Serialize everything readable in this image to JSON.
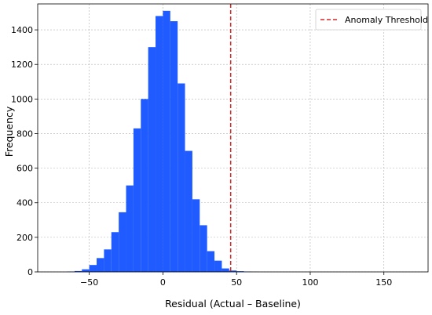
{
  "chart_data": {
    "type": "bar",
    "xlabel": "Residual (Actual – Baseline)",
    "ylabel": "Frequency",
    "xlim": [
      -85,
      180
    ],
    "ylim": [
      0,
      1550
    ],
    "xticks": [
      -50,
      0,
      50,
      100,
      150
    ],
    "yticks": [
      0,
      200,
      400,
      600,
      800,
      1000,
      1200,
      1400
    ],
    "bin_width": 5,
    "bins": [
      {
        "x0": -65,
        "count": 2
      },
      {
        "x0": -60,
        "count": 5
      },
      {
        "x0": -55,
        "count": 15
      },
      {
        "x0": -50,
        "count": 40
      },
      {
        "x0": -45,
        "count": 80
      },
      {
        "x0": -40,
        "count": 130
      },
      {
        "x0": -35,
        "count": 230
      },
      {
        "x0": -30,
        "count": 345
      },
      {
        "x0": -25,
        "count": 500
      },
      {
        "x0": -20,
        "count": 830
      },
      {
        "x0": -15,
        "count": 1000
      },
      {
        "x0": -10,
        "count": 1300
      },
      {
        "x0": -5,
        "count": 1480
      },
      {
        "x0": 0,
        "count": 1510
      },
      {
        "x0": 5,
        "count": 1450
      },
      {
        "x0": 10,
        "count": 1090
      },
      {
        "x0": 15,
        "count": 700
      },
      {
        "x0": 20,
        "count": 420
      },
      {
        "x0": 25,
        "count": 270
      },
      {
        "x0": 30,
        "count": 120
      },
      {
        "x0": 35,
        "count": 65
      },
      {
        "x0": 40,
        "count": 20
      },
      {
        "x0": 45,
        "count": 8
      },
      {
        "x0": 50,
        "count": 4
      },
      {
        "x0": 55,
        "count": 2
      },
      {
        "x0": 60,
        "count": 1
      }
    ],
    "threshold": {
      "x": 46,
      "label": "Anomaly Threshold",
      "color": "#d62728"
    },
    "bar_color": "#1f5bff",
    "grid": true,
    "legend_position": "top-right"
  }
}
